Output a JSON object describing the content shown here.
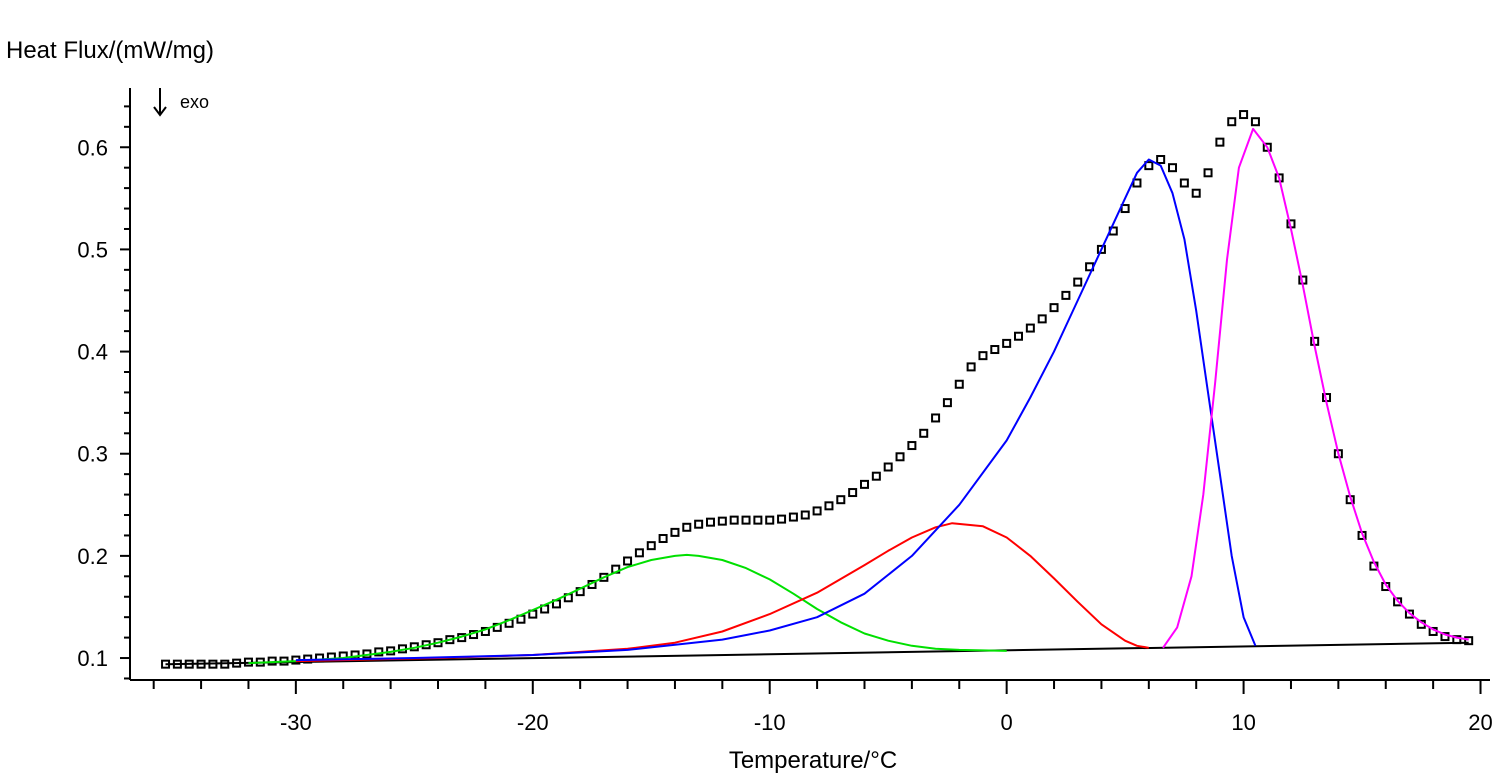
{
  "chart_data": {
    "type": "line",
    "y_label": "Heat Flux/(mW/mg)",
    "x_label": "Temperature/°C",
    "annotation": "exo",
    "xlim": [
      -37,
      20.4
    ],
    "ylim": [
      0.0785,
      0.658
    ],
    "xticks": [
      -30,
      -20,
      -10,
      0,
      10,
      20
    ],
    "xticks_minor": [
      -36,
      -34,
      -32,
      -28,
      -26,
      -24,
      -22,
      -18,
      -16,
      -14,
      -12,
      -8,
      -6,
      -4,
      -2,
      2,
      4,
      6,
      8,
      12,
      14,
      16,
      18
    ],
    "yticks": [
      0.1,
      0.2,
      0.3,
      0.4,
      0.5,
      0.6
    ],
    "yticks_minor": [
      0.08,
      0.12,
      0.14,
      0.16,
      0.18,
      0.22,
      0.24,
      0.26,
      0.28,
      0.32,
      0.34,
      0.36,
      0.38,
      0.42,
      0.44,
      0.46,
      0.48,
      0.52,
      0.54,
      0.56,
      0.58,
      0.62,
      0.64
    ],
    "series": [
      {
        "style": "markers",
        "color": "#000000",
        "x": [
          -35.5,
          -35,
          -34.5,
          -34,
          -33.5,
          -33,
          -32.5,
          -32,
          -31.5,
          -31,
          -30.5,
          -30,
          -29.5,
          -29,
          -28.5,
          -28,
          -27.5,
          -27,
          -26.5,
          -26,
          -25.5,
          -25,
          -24.5,
          -24,
          -23.5,
          -23,
          -22.5,
          -22,
          -21.5,
          -21,
          -20.5,
          -20,
          -19.5,
          -19,
          -18.5,
          -18,
          -17.5,
          -17,
          -16.5,
          -16,
          -15.5,
          -15,
          -14.5,
          -14,
          -13.5,
          -13,
          -12.5,
          -12,
          -11.5,
          -11,
          -10.5,
          -10,
          -9.5,
          -9,
          -8.5,
          -8,
          -7.5,
          -7,
          -6.5,
          -6,
          -5.5,
          -5,
          -4.5,
          -4,
          -3.5,
          -3,
          -2.5,
          -2,
          -1.5,
          -1,
          -0.5,
          0,
          0.5,
          1,
          1.5,
          2,
          2.5,
          3,
          3.5,
          4,
          4.5,
          5,
          5.5,
          6,
          6.5,
          7,
          7.5,
          8,
          8.5,
          9,
          9.5,
          10,
          10.5,
          11,
          11.5,
          12,
          12.5,
          13,
          13.5,
          14,
          14.5,
          15,
          15.5,
          16,
          16.5,
          17,
          17.5,
          18,
          18.5,
          19,
          19.5
        ],
        "values": [
          0.094,
          0.094,
          0.094,
          0.094,
          0.094,
          0.094,
          0.095,
          0.096,
          0.096,
          0.097,
          0.097,
          0.098,
          0.099,
          0.1,
          0.101,
          0.102,
          0.103,
          0.104,
          0.106,
          0.107,
          0.109,
          0.111,
          0.113,
          0.115,
          0.118,
          0.12,
          0.123,
          0.126,
          0.13,
          0.134,
          0.138,
          0.143,
          0.148,
          0.153,
          0.159,
          0.165,
          0.172,
          0.179,
          0.187,
          0.195,
          0.203,
          0.21,
          0.217,
          0.223,
          0.228,
          0.231,
          0.233,
          0.234,
          0.235,
          0.235,
          0.235,
          0.235,
          0.236,
          0.238,
          0.24,
          0.244,
          0.249,
          0.255,
          0.262,
          0.27,
          0.278,
          0.287,
          0.297,
          0.308,
          0.32,
          0.335,
          0.35,
          0.368,
          0.385,
          0.396,
          0.402,
          0.408,
          0.415,
          0.423,
          0.432,
          0.443,
          0.455,
          0.468,
          0.483,
          0.5,
          0.518,
          0.54,
          0.565,
          0.582,
          0.588,
          0.58,
          0.565,
          0.555,
          0.575,
          0.605,
          0.625,
          0.632,
          0.625,
          0.6,
          0.57,
          0.525,
          0.47,
          0.41,
          0.355,
          0.3,
          0.255,
          0.22,
          0.19,
          0.17,
          0.155,
          0.143,
          0.133,
          0.126,
          0.121,
          0.118,
          0.117
        ]
      },
      {
        "style": "line",
        "color": "#000000",
        "x": [
          -35.5,
          19.5
        ],
        "values": [
          0.094,
          0.115
        ]
      },
      {
        "style": "line",
        "color": "#00e000",
        "x": [
          -32,
          -30,
          -28,
          -26,
          -25,
          -24,
          -23,
          -22,
          -21,
          -20,
          -19,
          -18,
          -17,
          -16,
          -15,
          -14,
          -13.5,
          -13,
          -12,
          -11,
          -10,
          -9,
          -8,
          -7,
          -6,
          -5,
          -4,
          -3,
          -2,
          0
        ],
        "values": [
          0.095,
          0.097,
          0.1,
          0.106,
          0.11,
          0.115,
          0.121,
          0.128,
          0.137,
          0.147,
          0.157,
          0.168,
          0.179,
          0.189,
          0.196,
          0.2,
          0.201,
          0.2,
          0.196,
          0.188,
          0.177,
          0.163,
          0.148,
          0.135,
          0.124,
          0.117,
          0.112,
          0.109,
          0.108,
          0.107
        ]
      },
      {
        "style": "line",
        "color": "#ff0000",
        "x": [
          -30,
          -24,
          -20,
          -16,
          -14,
          -12,
          -10,
          -8,
          -6,
          -5,
          -4,
          -3,
          -2.3,
          -1,
          0,
          1,
          2,
          3,
          4,
          5,
          5.5,
          6
        ],
        "values": [
          0.097,
          0.1,
          0.103,
          0.109,
          0.115,
          0.126,
          0.143,
          0.164,
          0.191,
          0.205,
          0.218,
          0.228,
          0.232,
          0.229,
          0.218,
          0.2,
          0.178,
          0.155,
          0.133,
          0.117,
          0.112,
          0.11
        ]
      },
      {
        "style": "line",
        "color": "#0000ff",
        "x": [
          -30,
          -25,
          -20,
          -16,
          -12,
          -10,
          -8,
          -6,
          -4,
          -2,
          0,
          1,
          2,
          3,
          4,
          5,
          5.5,
          6,
          6.5,
          7,
          7.5,
          8,
          8.5,
          9,
          9.5,
          10,
          10.5
        ],
        "values": [
          0.098,
          0.1,
          0.103,
          0.108,
          0.118,
          0.127,
          0.14,
          0.163,
          0.2,
          0.25,
          0.313,
          0.355,
          0.4,
          0.45,
          0.5,
          0.55,
          0.575,
          0.588,
          0.582,
          0.555,
          0.51,
          0.44,
          0.36,
          0.28,
          0.2,
          0.14,
          0.112
        ]
      },
      {
        "style": "line",
        "color": "#ff00ff",
        "x": [
          6.6,
          7.2,
          7.8,
          8.3,
          8.8,
          9.3,
          9.8,
          10.4,
          11,
          11.5,
          12,
          12.5,
          13,
          13.5,
          14,
          14.5,
          15,
          15.5,
          16,
          16.5,
          17,
          17.5,
          18,
          18.5,
          19,
          19.5
        ],
        "values": [
          0.11,
          0.13,
          0.18,
          0.26,
          0.37,
          0.49,
          0.58,
          0.618,
          0.6,
          0.57,
          0.52,
          0.465,
          0.405,
          0.35,
          0.3,
          0.258,
          0.222,
          0.194,
          0.172,
          0.156,
          0.144,
          0.135,
          0.128,
          0.123,
          0.12,
          0.118
        ]
      }
    ]
  }
}
